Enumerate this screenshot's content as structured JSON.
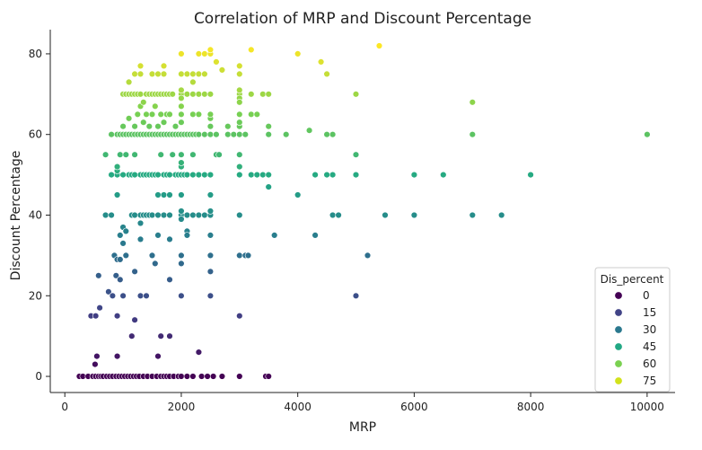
{
  "chart_data": {
    "type": "scatter",
    "title": "Correlation of MRP and Discount Percentage",
    "xlabel": "MRP",
    "ylabel": "Discount Percentage",
    "xlim": [
      -250,
      10480
    ],
    "ylim": [
      -4,
      86
    ],
    "x_ticks": [
      0,
      2000,
      4000,
      6000,
      8000,
      10000
    ],
    "y_ticks": [
      0,
      20,
      40,
      60,
      80
    ],
    "grid": false,
    "legend_position": "bottom-right",
    "legend_title": "Dis_percent",
    "hue_min": 0,
    "hue_max": 82,
    "legend_entries": [
      {
        "label": "0",
        "value": 0,
        "color": "#440154"
      },
      {
        "label": "15",
        "value": 15,
        "color": "#414487"
      },
      {
        "label": "30",
        "value": 30,
        "color": "#2a788e"
      },
      {
        "label": "45",
        "value": 45,
        "color": "#22a884"
      },
      {
        "label": "60",
        "value": 60,
        "color": "#7ad151"
      },
      {
        "label": "75",
        "value": 75,
        "color": "#d2e21b"
      }
    ],
    "colormap_stops": [
      "#440154",
      "#414487",
      "#2a788e",
      "#22a884",
      "#7ad151",
      "#fde725"
    ],
    "points": [
      [
        250,
        0
      ],
      [
        310,
        0
      ],
      [
        400,
        0
      ],
      [
        480,
        0
      ],
      [
        530,
        0
      ],
      [
        580,
        0
      ],
      [
        620,
        0
      ],
      [
        660,
        0
      ],
      [
        720,
        0
      ],
      [
        770,
        0
      ],
      [
        820,
        0
      ],
      [
        880,
        0
      ],
      [
        930,
        0
      ],
      [
        980,
        0
      ],
      [
        1030,
        0
      ],
      [
        1080,
        0
      ],
      [
        1130,
        0
      ],
      [
        1180,
        0
      ],
      [
        1230,
        0
      ],
      [
        1280,
        0
      ],
      [
        1350,
        0
      ],
      [
        1420,
        0
      ],
      [
        1500,
        0
      ],
      [
        1580,
        0
      ],
      [
        1650,
        0
      ],
      [
        1700,
        0
      ],
      [
        1750,
        0
      ],
      [
        1800,
        0
      ],
      [
        1870,
        0
      ],
      [
        1950,
        0
      ],
      [
        2000,
        0
      ],
      [
        2100,
        0
      ],
      [
        2200,
        0
      ],
      [
        2350,
        0
      ],
      [
        2450,
        0
      ],
      [
        2550,
        0
      ],
      [
        2700,
        0
      ],
      [
        3000,
        0
      ],
      [
        3450,
        0
      ],
      [
        3500,
        0
      ],
      [
        520,
        3
      ],
      [
        550,
        5
      ],
      [
        900,
        5
      ],
      [
        1150,
        10
      ],
      [
        1600,
        5
      ],
      [
        1650,
        10
      ],
      [
        1800,
        10
      ],
      [
        2300,
        6
      ],
      [
        450,
        15
      ],
      [
        530,
        15
      ],
      [
        600,
        17
      ],
      [
        900,
        15
      ],
      [
        1200,
        14
      ],
      [
        3000,
        15
      ],
      [
        580,
        25
      ],
      [
        750,
        21
      ],
      [
        820,
        20
      ],
      [
        880,
        25
      ],
      [
        950,
        24
      ],
      [
        1000,
        20
      ],
      [
        850,
        30
      ],
      [
        900,
        29
      ],
      [
        950,
        29
      ],
      [
        1050,
        30
      ],
      [
        1200,
        26
      ],
      [
        1300,
        20
      ],
      [
        1400,
        20
      ],
      [
        1500,
        30
      ],
      [
        1550,
        28
      ],
      [
        1800,
        24
      ],
      [
        2000,
        30
      ],
      [
        2000,
        28
      ],
      [
        2000,
        20
      ],
      [
        2500,
        30
      ],
      [
        2500,
        26
      ],
      [
        2500,
        20
      ],
      [
        3000,
        30
      ],
      [
        3100,
        30
      ],
      [
        3150,
        30
      ],
      [
        5000,
        20
      ],
      [
        5200,
        30
      ],
      [
        700,
        40
      ],
      [
        800,
        40
      ],
      [
        950,
        35
      ],
      [
        1000,
        37
      ],
      [
        1000,
        33
      ],
      [
        1050,
        36
      ],
      [
        1150,
        40
      ],
      [
        1200,
        40
      ],
      [
        1300,
        40
      ],
      [
        1300,
        38
      ],
      [
        1300,
        34
      ],
      [
        1350,
        40
      ],
      [
        1400,
        40
      ],
      [
        1450,
        40
      ],
      [
        1500,
        40
      ],
      [
        1600,
        40
      ],
      [
        1600,
        35
      ],
      [
        1700,
        40
      ],
      [
        1800,
        40
      ],
      [
        1800,
        34
      ],
      [
        2000,
        40
      ],
      [
        2000,
        41
      ],
      [
        2000,
        39
      ],
      [
        2100,
        40
      ],
      [
        2100,
        36
      ],
      [
        2100,
        35
      ],
      [
        2200,
        40
      ],
      [
        2300,
        40
      ],
      [
        2400,
        40
      ],
      [
        2500,
        40
      ],
      [
        2500,
        41
      ],
      [
        2500,
        35
      ],
      [
        3000,
        40
      ],
      [
        3600,
        35
      ],
      [
        4300,
        35
      ],
      [
        4600,
        40
      ],
      [
        4700,
        40
      ],
      [
        5500,
        40
      ],
      [
        6000,
        40
      ],
      [
        7000,
        40
      ],
      [
        7500,
        40
      ],
      [
        900,
        45
      ],
      [
        1600,
        45
      ],
      [
        1700,
        45
      ],
      [
        1800,
        45
      ],
      [
        2000,
        45
      ],
      [
        2500,
        45
      ],
      [
        3500,
        47
      ],
      [
        4000,
        45
      ],
      [
        700,
        55
      ],
      [
        800,
        50
      ],
      [
        900,
        50
      ],
      [
        900,
        51
      ],
      [
        900,
        52
      ],
      [
        950,
        55
      ],
      [
        1000,
        50
      ],
      [
        1050,
        55
      ],
      [
        1100,
        50
      ],
      [
        1150,
        50
      ],
      [
        1200,
        50
      ],
      [
        1200,
        55
      ],
      [
        1300,
        50
      ],
      [
        1350,
        50
      ],
      [
        1400,
        50
      ],
      [
        1450,
        50
      ],
      [
        1500,
        50
      ],
      [
        1550,
        50
      ],
      [
        1600,
        50
      ],
      [
        1650,
        55
      ],
      [
        1700,
        50
      ],
      [
        1750,
        50
      ],
      [
        1800,
        50
      ],
      [
        1850,
        55
      ],
      [
        1900,
        50
      ],
      [
        1950,
        50
      ],
      [
        2000,
        50
      ],
      [
        2000,
        52
      ],
      [
        2000,
        53
      ],
      [
        2000,
        55
      ],
      [
        2050,
        50
      ],
      [
        2100,
        50
      ],
      [
        2200,
        50
      ],
      [
        2200,
        55
      ],
      [
        2300,
        50
      ],
      [
        2400,
        50
      ],
      [
        2500,
        50
      ],
      [
        2600,
        55
      ],
      [
        2650,
        55
      ],
      [
        3000,
        50
      ],
      [
        3000,
        52
      ],
      [
        3000,
        55
      ],
      [
        3200,
        50
      ],
      [
        3300,
        50
      ],
      [
        3400,
        50
      ],
      [
        3500,
        50
      ],
      [
        4300,
        50
      ],
      [
        4500,
        50
      ],
      [
        4600,
        50
      ],
      [
        5000,
        50
      ],
      [
        5000,
        55
      ],
      [
        6000,
        50
      ],
      [
        6500,
        50
      ],
      [
        8000,
        50
      ],
      [
        800,
        60
      ],
      [
        900,
        60
      ],
      [
        950,
        60
      ],
      [
        1000,
        60
      ],
      [
        1050,
        60
      ],
      [
        1100,
        60
      ],
      [
        1150,
        60
      ],
      [
        1200,
        60
      ],
      [
        1250,
        60
      ],
      [
        1300,
        60
      ],
      [
        1350,
        60
      ],
      [
        1400,
        60
      ],
      [
        1450,
        60
      ],
      [
        1500,
        60
      ],
      [
        1550,
        60
      ],
      [
        1600,
        60
      ],
      [
        1650,
        60
      ],
      [
        1700,
        60
      ],
      [
        1750,
        60
      ],
      [
        1800,
        60
      ],
      [
        1850,
        60
      ],
      [
        1900,
        60
      ],
      [
        1950,
        60
      ],
      [
        2000,
        60
      ],
      [
        2050,
        60
      ],
      [
        2100,
        60
      ],
      [
        2150,
        60
      ],
      [
        2200,
        60
      ],
      [
        2250,
        60
      ],
      [
        2300,
        60
      ],
      [
        2400,
        60
      ],
      [
        2500,
        60
      ],
      [
        2600,
        60
      ],
      [
        2800,
        60
      ],
      [
        2900,
        60
      ],
      [
        3000,
        60
      ],
      [
        3100,
        60
      ],
      [
        3500,
        60
      ],
      [
        3800,
        60
      ],
      [
        4200,
        61
      ],
      [
        4500,
        60
      ],
      [
        4600,
        60
      ],
      [
        7000,
        60
      ],
      [
        10000,
        60
      ],
      [
        1000,
        62
      ],
      [
        1100,
        64
      ],
      [
        1200,
        62
      ],
      [
        1250,
        65
      ],
      [
        1300,
        67
      ],
      [
        1350,
        63
      ],
      [
        1400,
        65
      ],
      [
        1450,
        62
      ],
      [
        1500,
        65
      ],
      [
        1550,
        67
      ],
      [
        1600,
        62
      ],
      [
        1650,
        65
      ],
      [
        1700,
        63
      ],
      [
        1750,
        65
      ],
      [
        1800,
        65
      ],
      [
        1900,
        62
      ],
      [
        2000,
        63
      ],
      [
        2000,
        65
      ],
      [
        2000,
        67
      ],
      [
        2200,
        65
      ],
      [
        2300,
        65
      ],
      [
        2500,
        62
      ],
      [
        2500,
        64
      ],
      [
        2500,
        65
      ],
      [
        2800,
        62
      ],
      [
        3000,
        62
      ],
      [
        3000,
        63
      ],
      [
        3000,
        65
      ],
      [
        3200,
        65
      ],
      [
        3300,
        65
      ],
      [
        3500,
        62
      ],
      [
        1000,
        70
      ],
      [
        1050,
        70
      ],
      [
        1100,
        70
      ],
      [
        1150,
        70
      ],
      [
        1200,
        70
      ],
      [
        1250,
        70
      ],
      [
        1300,
        70
      ],
      [
        1350,
        68
      ],
      [
        1400,
        70
      ],
      [
        1450,
        70
      ],
      [
        1500,
        70
      ],
      [
        1550,
        70
      ],
      [
        1600,
        70
      ],
      [
        1650,
        70
      ],
      [
        1700,
        70
      ],
      [
        1750,
        70
      ],
      [
        1800,
        70
      ],
      [
        1850,
        70
      ],
      [
        2000,
        70
      ],
      [
        2000,
        69
      ],
      [
        2000,
        71
      ],
      [
        2100,
        70
      ],
      [
        2200,
        70
      ],
      [
        2300,
        70
      ],
      [
        2400,
        70
      ],
      [
        2500,
        70
      ],
      [
        3000,
        70
      ],
      [
        3000,
        71
      ],
      [
        3000,
        69
      ],
      [
        3000,
        68
      ],
      [
        3200,
        70
      ],
      [
        3400,
        70
      ],
      [
        3500,
        70
      ],
      [
        5000,
        70
      ],
      [
        7000,
        68
      ],
      [
        1100,
        73
      ],
      [
        1200,
        75
      ],
      [
        1300,
        75
      ],
      [
        1300,
        77
      ],
      [
        1500,
        75
      ],
      [
        1600,
        75
      ],
      [
        1700,
        75
      ],
      [
        1700,
        77
      ],
      [
        2000,
        75
      ],
      [
        2000,
        80
      ],
      [
        2100,
        75
      ],
      [
        2200,
        73
      ],
      [
        2200,
        75
      ],
      [
        2300,
        75
      ],
      [
        2300,
        80
      ],
      [
        2400,
        75
      ],
      [
        2400,
        80
      ],
      [
        2500,
        80
      ],
      [
        2500,
        81
      ],
      [
        2600,
        78
      ],
      [
        2700,
        76
      ],
      [
        3000,
        75
      ],
      [
        3000,
        77
      ],
      [
        3200,
        81
      ],
      [
        4000,
        80
      ],
      [
        4400,
        78
      ],
      [
        4500,
        75
      ],
      [
        5400,
        82
      ]
    ]
  }
}
